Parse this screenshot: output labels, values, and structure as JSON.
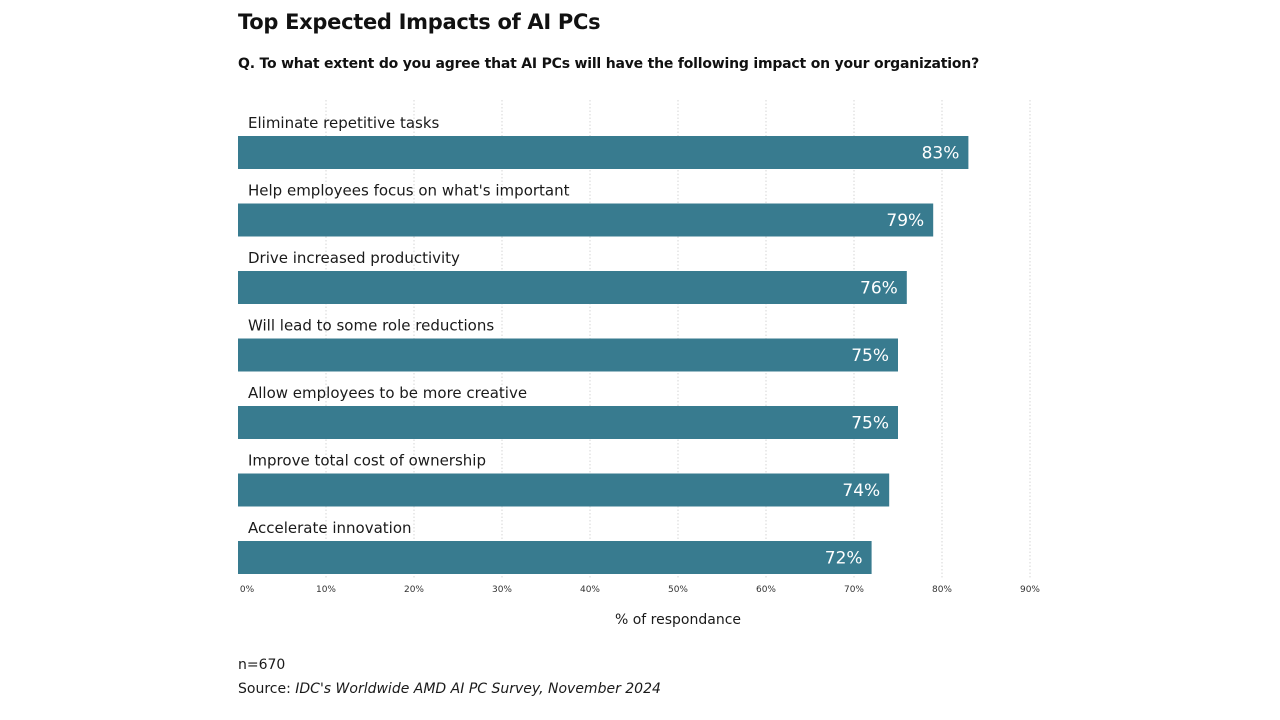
{
  "chart_data": {
    "type": "bar",
    "orientation": "horizontal",
    "title": "Top Expected Impacts of AI PCs",
    "subtitle": "Q. To what extent do you agree that AI PCs will have the following impact on your organization?",
    "categories": [
      "Eliminate repetitive tasks",
      "Help employees focus on what's important",
      "Drive increased productivity",
      "Will lead to some role reductions",
      "Allow employees to be more creative",
      "Improve total cost of ownership",
      "Accelerate innovation"
    ],
    "values": [
      83,
      79,
      76,
      75,
      75,
      74,
      72
    ],
    "value_labels": [
      "83%",
      "79%",
      "76%",
      "75%",
      "75%",
      "74%",
      "72%"
    ],
    "xlabel": "% of respondance",
    "ylabel": "",
    "xlim": [
      0,
      90
    ],
    "xticks": [
      0,
      10,
      20,
      30,
      40,
      50,
      60,
      70,
      80,
      90
    ],
    "xtick_labels": [
      "0%",
      "10%",
      "20%",
      "30%",
      "40%",
      "50%",
      "60%",
      "70%",
      "80%",
      "90%"
    ],
    "grid": "vertical-dotted",
    "legend": "none",
    "bar_color": "#387b8f"
  },
  "footer": {
    "note": "n=670",
    "source_prefix": "Source: ",
    "source_text": "IDC's Worldwide AMD AI PC Survey, November 2024"
  }
}
